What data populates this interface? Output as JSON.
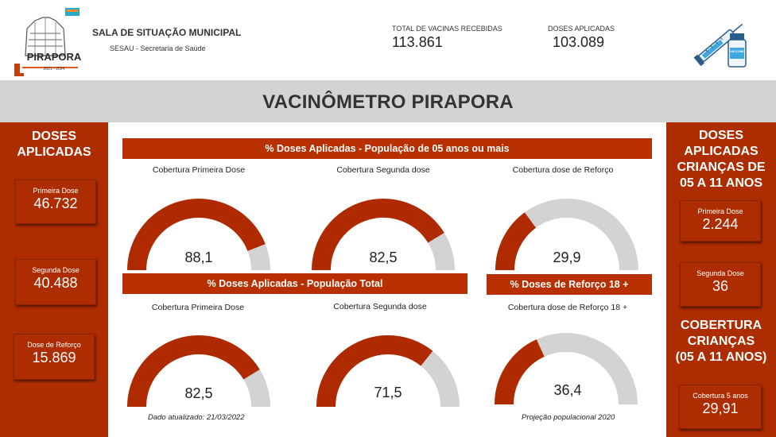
{
  "header": {
    "logo_text": "PIRAPORA",
    "logo_years": "2021 - 2024",
    "org_title": "SALA DE SITUAÇÃO MUNICIPAL",
    "org_subtitle": "SESAU - Secretaria de Saúde",
    "kpis": [
      {
        "label": "TOTAL DE VACINAS RECEBIDAS",
        "value": "113.861"
      },
      {
        "label": "DOSES APLICADAS",
        "value": "103.089"
      }
    ],
    "vial_label": "VACCINE"
  },
  "page_title": "VACINÔMETRO PIRAPORA",
  "left_panel": {
    "title_line1": "DOSES",
    "title_line2": "APLICADAS",
    "cards": [
      {
        "label": "Primeira Dose",
        "value": "46.732"
      },
      {
        "label": "Segunda Dose",
        "value": "40.488"
      },
      {
        "label": "Dose de Reforço",
        "value": "15.869"
      }
    ]
  },
  "right_panel": {
    "title_lines": [
      "DOSES",
      "APLICADAS",
      "CRIANÇAS DE",
      "05 A 11 ANOS"
    ],
    "cards": [
      {
        "label": "Primeira Dose",
        "value": "2.244"
      },
      {
        "label": "Segunda Dose",
        "value": "36"
      }
    ],
    "coverage_title_lines": [
      "COBERTURA",
      "CRIANÇAS",
      "(05 A 11 ANOS)"
    ],
    "coverage_card": {
      "label": "Cobertura 5 anos",
      "value": "29,91"
    }
  },
  "section1": {
    "banner": "% Doses Aplicadas - População de 05 anos ou mais",
    "gauges": [
      {
        "label": "Cobertura Primeira Dose",
        "value": "88,1",
        "fraction": 0.881
      },
      {
        "label": "Cobertura Segunda dose",
        "value": "82,5",
        "fraction": 0.825
      },
      {
        "label": "Cobertura dose de Reforço",
        "value": "29,9",
        "fraction": 0.299
      }
    ]
  },
  "section2": {
    "banner_total": "% Doses Aplicadas - População Total",
    "banner_reforco": "% Doses de Reforço 18 +",
    "gauges": [
      {
        "label": "Cobertura Primeira Dose",
        "value": "82,5",
        "fraction": 0.825
      },
      {
        "label": "Cobertura Segunda dose",
        "value": "71,5",
        "fraction": 0.715
      },
      {
        "label": "Cobertura dose de Reforço 18 +",
        "value": "36,4",
        "fraction": 0.364
      }
    ],
    "footnote_updated": "Dado atualizado: 21/03/2022",
    "footnote_projection": "Projeção populacional 2020"
  },
  "colors": {
    "accent": "#ad2c00",
    "gauge_fill": "#b02a00",
    "gauge_track": "#d3d3d3",
    "title_band": "#d3d3d3"
  }
}
